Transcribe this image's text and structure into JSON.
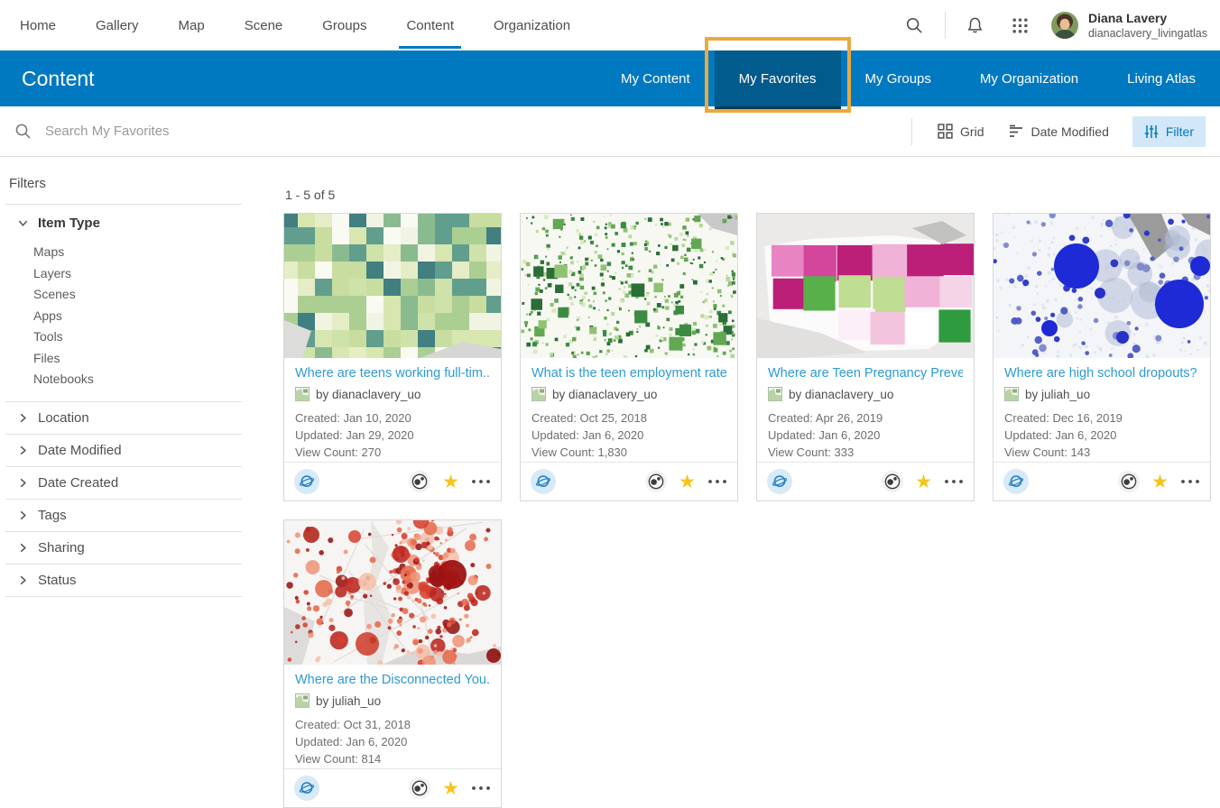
{
  "top_nav": {
    "items": [
      "Home",
      "Gallery",
      "Map",
      "Scene",
      "Groups",
      "Content",
      "Organization"
    ],
    "active_item": "Content",
    "user": {
      "name": "Diana Lavery",
      "username": "dianaclavery_livingatlas"
    }
  },
  "header": {
    "title": "Content",
    "tabs": [
      "My Content",
      "My Favorites",
      "My Groups",
      "My Organization",
      "Living Atlas"
    ],
    "active_tab": "My Favorites"
  },
  "search": {
    "placeholder": "Search My Favorites"
  },
  "toolbar": {
    "grid_label": "Grid",
    "sort_label": "Date Modified",
    "filter_label": "Filter"
  },
  "sidebar": {
    "title": "Filters",
    "item_type_label": "Item Type",
    "item_types": [
      "Maps",
      "Layers",
      "Scenes",
      "Apps",
      "Tools",
      "Files",
      "Notebooks"
    ],
    "sections": [
      "Location",
      "Date Modified",
      "Date Created",
      "Tags",
      "Sharing",
      "Status"
    ]
  },
  "results": {
    "count_text": "1 - 5 of 5",
    "labels": {
      "by": "by",
      "created": "Created:",
      "updated": "Updated:",
      "views": "View Count:"
    },
    "cards": [
      {
        "title": "Where are teens working full-tim...",
        "author": "dianaclavery_uo",
        "created": "Jan 10, 2020",
        "updated": "Jan 29, 2020",
        "views": "270",
        "thumb": "green-choropleth"
      },
      {
        "title": "What is the teen employment rate?",
        "author": "dianaclavery_uo",
        "created": "Oct 25, 2018",
        "updated": "Jan 6, 2020",
        "views": "1,830",
        "thumb": "green-dots"
      },
      {
        "title": "Where are Teen Pregnancy Preve...",
        "author": "dianaclavery_uo",
        "created": "Apr 26, 2019",
        "updated": "Jan 6, 2020",
        "views": "333",
        "thumb": "pink-green-states"
      },
      {
        "title": "Where are high school dropouts?",
        "author": "juliah_uo",
        "created": "Dec 16, 2019",
        "updated": "Jan 6, 2020",
        "views": "143",
        "thumb": "blue-bubbles"
      },
      {
        "title": "Where are the Disconnected You...",
        "author": "juliah_uo",
        "created": "Oct 31, 2018",
        "updated": "Jan 6, 2020",
        "views": "814",
        "thumb": "red-dots"
      }
    ]
  },
  "colors": {
    "brand_blue": "#0079c1",
    "active_tab_blue": "#015b8c",
    "annotation_orange": "#eba93e",
    "link_blue": "#2d9ad3",
    "favorite_star_yellow": "#f5c41e",
    "filter_button_bg": "#d2e7f7"
  }
}
